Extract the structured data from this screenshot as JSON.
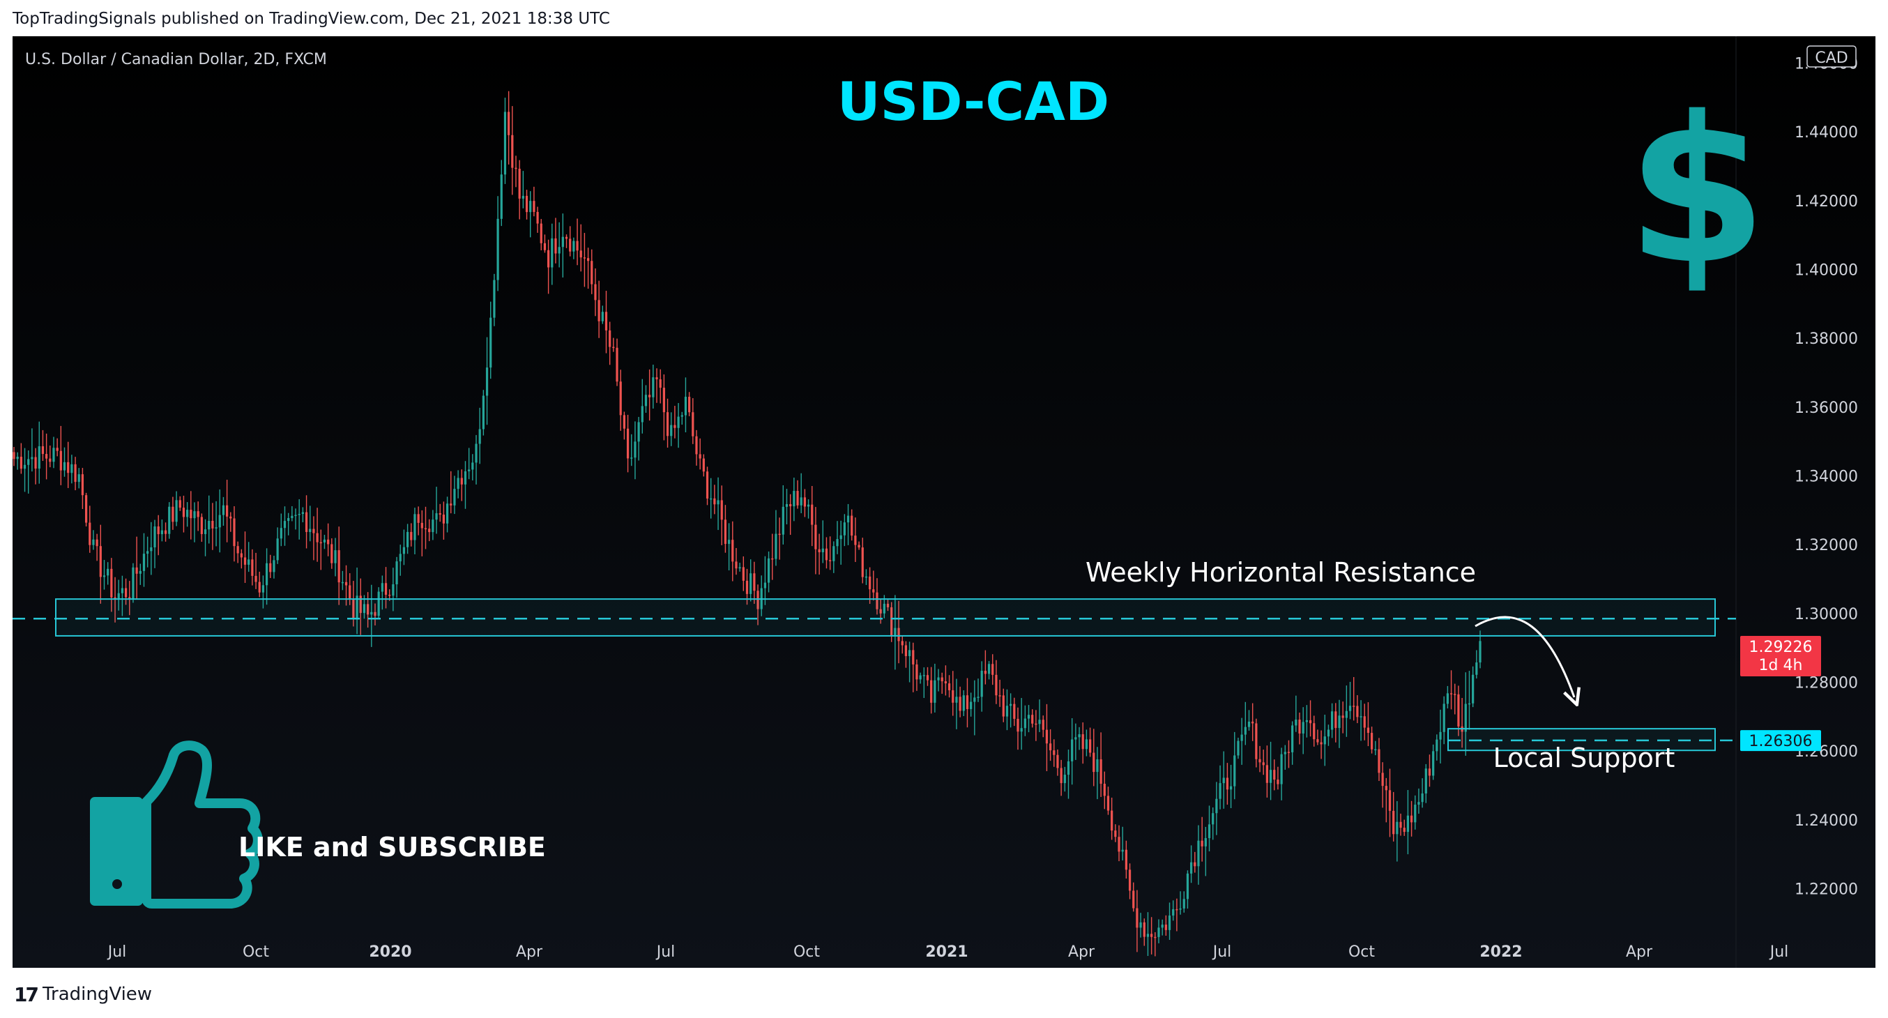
{
  "attribution": "TopTradingSignals published on TradingView.com, Dec 21, 2021 18:38 UTC",
  "symbol_title": "U.S. Dollar / Canadian Dollar, 2D, FXCM",
  "footer_brand": "TradingView",
  "footer_mark": "17",
  "colors": {
    "up": "#26a69a",
    "down": "#ef5350",
    "accent": "#00e5ff",
    "box": "#27c7d6",
    "price_tag": "#f23645"
  },
  "icons": [
    "dollar-sign-icon",
    "thumbs-up-icon",
    "tradingview-logo-icon"
  ],
  "chart_data": {
    "type": "candlestick",
    "title": "USD-CAD",
    "currency": "CAD",
    "y_ticks": [
      "1.46000",
      "1.44000",
      "1.42000",
      "1.40000",
      "1.38000",
      "1.36000",
      "1.34000",
      "1.32000",
      "1.30000",
      "1.28000",
      "1.26000",
      "1.24000",
      "1.22000"
    ],
    "x_ticks": [
      "Jul",
      "Oct",
      "2020",
      "Apr",
      "Jul",
      "Oct",
      "2021",
      "Apr",
      "Jul",
      "Oct",
      "2022",
      "Apr",
      "Jul"
    ],
    "ylim": [
      1.197,
      1.467
    ],
    "current_price": "1.29226",
    "countdown": "1d 4h",
    "support_price": "1.26306",
    "annotations": {
      "resistance_label": "Weekly Horizontal Resistance",
      "support_label": "Local Support",
      "cta": "LIKE and SUBSCRIBE"
    },
    "resistance_zone": [
      1.2935,
      1.3042
    ],
    "resistance_level": 1.2985,
    "support_zone": [
      1.2602,
      1.2665
    ],
    "support_level": 1.2631,
    "anchors": [
      [
        0,
        1.345
      ],
      [
        12,
        1.346
      ],
      [
        18,
        1.34
      ],
      [
        22,
        1.318
      ],
      [
        28,
        1.305
      ],
      [
        32,
        1.307
      ],
      [
        38,
        1.322
      ],
      [
        46,
        1.331
      ],
      [
        52,
        1.326
      ],
      [
        58,
        1.33
      ],
      [
        62,
        1.318
      ],
      [
        68,
        1.308
      ],
      [
        74,
        1.322
      ],
      [
        80,
        1.329
      ],
      [
        86,
        1.32
      ],
      [
        90,
        1.313
      ],
      [
        94,
        1.302
      ],
      [
        98,
        1.299
      ],
      [
        104,
        1.309
      ],
      [
        108,
        1.318
      ],
      [
        112,
        1.329
      ],
      [
        118,
        1.326
      ],
      [
        122,
        1.338
      ],
      [
        128,
        1.347
      ],
      [
        132,
        1.385
      ],
      [
        136,
        1.446
      ],
      [
        140,
        1.421
      ],
      [
        144,
        1.415
      ],
      [
        148,
        1.404
      ],
      [
        152,
        1.412
      ],
      [
        158,
        1.403
      ],
      [
        162,
        1.388
      ],
      [
        166,
        1.374
      ],
      [
        170,
        1.342
      ],
      [
        174,
        1.358
      ],
      [
        178,
        1.367
      ],
      [
        182,
        1.351
      ],
      [
        186,
        1.361
      ],
      [
        190,
        1.342
      ],
      [
        194,
        1.332
      ],
      [
        198,
        1.32
      ],
      [
        202,
        1.311
      ],
      [
        206,
        1.305
      ],
      [
        210,
        1.318
      ],
      [
        214,
        1.331
      ],
      [
        218,
        1.335
      ],
      [
        222,
        1.322
      ],
      [
        226,
        1.316
      ],
      [
        230,
        1.33
      ],
      [
        234,
        1.316
      ],
      [
        238,
        1.307
      ],
      [
        242,
        1.299
      ],
      [
        246,
        1.292
      ],
      [
        250,
        1.283
      ],
      [
        254,
        1.275
      ],
      [
        258,
        1.283
      ],
      [
        262,
        1.271
      ],
      [
        266,
        1.277
      ],
      [
        270,
        1.283
      ],
      [
        274,
        1.273
      ],
      [
        278,
        1.267
      ],
      [
        282,
        1.271
      ],
      [
        286,
        1.262
      ],
      [
        290,
        1.254
      ],
      [
        294,
        1.262
      ],
      [
        298,
        1.26
      ],
      [
        302,
        1.249
      ],
      [
        306,
        1.232
      ],
      [
        310,
        1.214
      ],
      [
        314,
        1.207
      ],
      [
        318,
        1.209
      ],
      [
        322,
        1.214
      ],
      [
        326,
        1.228
      ],
      [
        330,
        1.238
      ],
      [
        334,
        1.247
      ],
      [
        338,
        1.256
      ],
      [
        342,
        1.268
      ],
      [
        346,
        1.255
      ],
      [
        350,
        1.252
      ],
      [
        354,
        1.266
      ],
      [
        358,
        1.272
      ],
      [
        362,
        1.262
      ],
      [
        366,
        1.27
      ],
      [
        370,
        1.276
      ],
      [
        374,
        1.27
      ],
      [
        378,
        1.254
      ],
      [
        382,
        1.237
      ],
      [
        386,
        1.239
      ],
      [
        390,
        1.248
      ],
      [
        394,
        1.264
      ],
      [
        398,
        1.279
      ],
      [
        401,
        1.266
      ],
      [
        404,
        1.283
      ],
      [
        406,
        1.292
      ]
    ]
  }
}
